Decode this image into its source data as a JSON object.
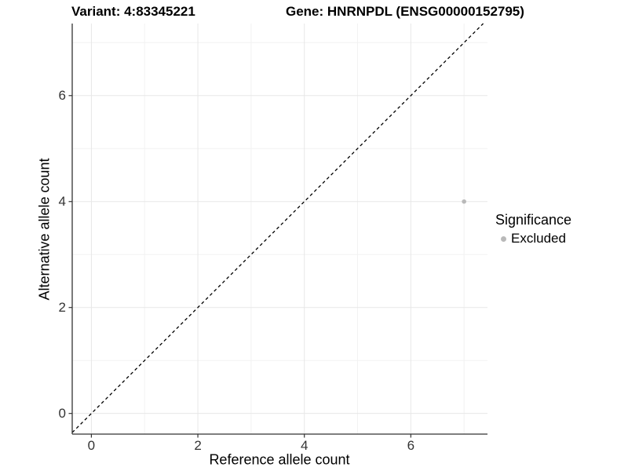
{
  "chart_data": {
    "type": "scatter",
    "title_variant": "Variant: 4:83345221",
    "title_gene": "Gene: HNRNPDL (ENSG00000152795)",
    "xlabel": "Reference allele count",
    "ylabel": "Alternative allele count",
    "xticks": [
      0,
      2,
      4,
      6
    ],
    "yticks": [
      0,
      2,
      4,
      6
    ],
    "xminor": [
      1,
      3,
      5,
      7
    ],
    "yminor": [
      1,
      3,
      5,
      7
    ],
    "xlim": [
      -0.36,
      7.44
    ],
    "ylim": [
      -0.39,
      7.36
    ],
    "grid": true,
    "reference_line": {
      "slope": 1,
      "intercept": 0,
      "style": "dashed",
      "color": "#000000"
    },
    "points": [
      {
        "x": 7,
        "y": 4,
        "significance": "Excluded",
        "color": "#b9b9b9"
      }
    ],
    "legend": {
      "title": "Significance",
      "position": "right",
      "entries": [
        {
          "label": "Excluded",
          "color": "#b9b9b9"
        }
      ]
    }
  },
  "colors": {
    "background": "#ffffff",
    "grid_major": "#e7e7e7",
    "grid_minor": "#f2f2f2",
    "axis_line": "#333333",
    "tick_mark": "#333333",
    "tick_text": "#333333"
  }
}
